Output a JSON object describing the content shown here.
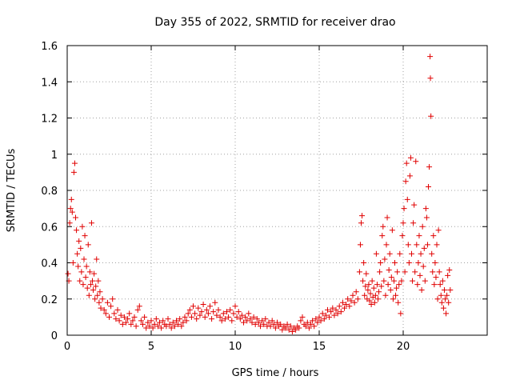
{
  "chart_data": {
    "type": "scatter",
    "title": "Day 355 of 2022, SRMTID for receiver drao",
    "xlabel": "GPS time / hours",
    "ylabel": "SRMTID / TECUs",
    "xlim": [
      0,
      25
    ],
    "ylim": [
      0,
      1.6
    ],
    "xticks": [
      0,
      5,
      10,
      15,
      20
    ],
    "xtick_labels": [
      "0",
      "5",
      "10",
      "15",
      "20"
    ],
    "yticks": [
      0,
      0.2,
      0.4,
      0.6,
      0.8,
      1.0,
      1.2,
      1.4,
      1.6
    ],
    "ytick_labels": [
      "0",
      "0.2",
      "0.4",
      "0.6",
      "0.8",
      "1",
      "1.2",
      "1.4",
      "1.6"
    ],
    "grid": true,
    "marker": "+",
    "color": "#e00000",
    "series": [
      {
        "name": "SRMTID",
        "points": [
          [
            0.05,
            0.34
          ],
          [
            0.1,
            0.3
          ],
          [
            0.15,
            0.62
          ],
          [
            0.2,
            0.7
          ],
          [
            0.25,
            0.75
          ],
          [
            0.3,
            0.68
          ],
          [
            0.35,
            0.4
          ],
          [
            0.4,
            0.9
          ],
          [
            0.45,
            0.95
          ],
          [
            0.5,
            0.65
          ],
          [
            0.55,
            0.58
          ],
          [
            0.6,
            0.45
          ],
          [
            0.65,
            0.38
          ],
          [
            0.7,
            0.52
          ],
          [
            0.75,
            0.3
          ],
          [
            0.8,
            0.48
          ],
          [
            0.85,
            0.35
          ],
          [
            0.9,
            0.6
          ],
          [
            0.95,
            0.28
          ],
          [
            1.0,
            0.42
          ],
          [
            1.05,
            0.55
          ],
          [
            1.1,
            0.32
          ],
          [
            1.15,
            0.38
          ],
          [
            1.2,
            0.26
          ],
          [
            1.25,
            0.5
          ],
          [
            1.3,
            0.22
          ],
          [
            1.35,
            0.35
          ],
          [
            1.4,
            0.28
          ],
          [
            1.45,
            0.62
          ],
          [
            1.5,
            0.3
          ],
          [
            1.55,
            0.25
          ],
          [
            1.6,
            0.34
          ],
          [
            1.65,
            0.2
          ],
          [
            1.7,
            0.27
          ],
          [
            1.75,
            0.42
          ],
          [
            1.8,
            0.22
          ],
          [
            1.85,
            0.3
          ],
          [
            1.9,
            0.18
          ],
          [
            1.95,
            0.24
          ],
          [
            2.0,
            0.15
          ],
          [
            2.1,
            0.2
          ],
          [
            2.2,
            0.14
          ],
          [
            2.3,
            0.12
          ],
          [
            2.4,
            0.18
          ],
          [
            2.5,
            0.1
          ],
          [
            2.6,
            0.16
          ],
          [
            2.7,
            0.2
          ],
          [
            2.8,
            0.12
          ],
          [
            2.9,
            0.09
          ],
          [
            3.0,
            0.14
          ],
          [
            3.1,
            0.08
          ],
          [
            3.2,
            0.11
          ],
          [
            3.3,
            0.06
          ],
          [
            3.4,
            0.1
          ],
          [
            3.5,
            0.07
          ],
          [
            3.6,
            0.09
          ],
          [
            3.7,
            0.12
          ],
          [
            3.8,
            0.06
          ],
          [
            3.9,
            0.08
          ],
          [
            4.0,
            0.1
          ],
          [
            4.1,
            0.05
          ],
          [
            4.2,
            0.14
          ],
          [
            4.3,
            0.16
          ],
          [
            4.4,
            0.08
          ],
          [
            4.5,
            0.06
          ],
          [
            4.6,
            0.1
          ],
          [
            4.7,
            0.04
          ],
          [
            4.8,
            0.07
          ],
          [
            4.9,
            0.05
          ],
          [
            5.0,
            0.08
          ],
          [
            5.1,
            0.04
          ],
          [
            5.2,
            0.06
          ],
          [
            5.3,
            0.09
          ],
          [
            5.4,
            0.05
          ],
          [
            5.5,
            0.07
          ],
          [
            5.6,
            0.04
          ],
          [
            5.7,
            0.08
          ],
          [
            5.8,
            0.06
          ],
          [
            5.9,
            0.05
          ],
          [
            6.0,
            0.09
          ],
          [
            6.1,
            0.06
          ],
          [
            6.2,
            0.04
          ],
          [
            6.3,
            0.07
          ],
          [
            6.4,
            0.05
          ],
          [
            6.5,
            0.08
          ],
          [
            6.6,
            0.06
          ],
          [
            6.7,
            0.09
          ],
          [
            6.8,
            0.05
          ],
          [
            6.9,
            0.07
          ],
          [
            7.0,
            0.1
          ],
          [
            7.1,
            0.08
          ],
          [
            7.2,
            0.12
          ],
          [
            7.3,
            0.14
          ],
          [
            7.4,
            0.1
          ],
          [
            7.5,
            0.16
          ],
          [
            7.6,
            0.12
          ],
          [
            7.7,
            0.09
          ],
          [
            7.8,
            0.15
          ],
          [
            7.9,
            0.11
          ],
          [
            8.0,
            0.13
          ],
          [
            8.1,
            0.17
          ],
          [
            8.2,
            0.1
          ],
          [
            8.3,
            0.14
          ],
          [
            8.4,
            0.12
          ],
          [
            8.5,
            0.16
          ],
          [
            8.6,
            0.09
          ],
          [
            8.7,
            0.13
          ],
          [
            8.8,
            0.18
          ],
          [
            8.9,
            0.11
          ],
          [
            9.0,
            0.14
          ],
          [
            9.1,
            0.1
          ],
          [
            9.2,
            0.08
          ],
          [
            9.3,
            0.12
          ],
          [
            9.4,
            0.09
          ],
          [
            9.5,
            0.13
          ],
          [
            9.6,
            0.1
          ],
          [
            9.7,
            0.14
          ],
          [
            9.8,
            0.08
          ],
          [
            9.9,
            0.12
          ],
          [
            10.0,
            0.16
          ],
          [
            10.1,
            0.1
          ],
          [
            10.2,
            0.13
          ],
          [
            10.3,
            0.09
          ],
          [
            10.4,
            0.11
          ],
          [
            10.5,
            0.07
          ],
          [
            10.6,
            0.1
          ],
          [
            10.7,
            0.08
          ],
          [
            10.8,
            0.12
          ],
          [
            10.9,
            0.09
          ],
          [
            11.0,
            0.07
          ],
          [
            11.1,
            0.1
          ],
          [
            11.2,
            0.06
          ],
          [
            11.3,
            0.09
          ],
          [
            11.4,
            0.07
          ],
          [
            11.5,
            0.05
          ],
          [
            11.6,
            0.08
          ],
          [
            11.7,
            0.06
          ],
          [
            11.8,
            0.09
          ],
          [
            11.9,
            0.05
          ],
          [
            12.0,
            0.07
          ],
          [
            12.1,
            0.05
          ],
          [
            12.2,
            0.08
          ],
          [
            12.3,
            0.06
          ],
          [
            12.4,
            0.04
          ],
          [
            12.5,
            0.07
          ],
          [
            12.6,
            0.05
          ],
          [
            12.7,
            0.06
          ],
          [
            12.8,
            0.03
          ],
          [
            12.9,
            0.05
          ],
          [
            13.0,
            0.04
          ],
          [
            13.1,
            0.06
          ],
          [
            13.2,
            0.03
          ],
          [
            13.3,
            0.05
          ],
          [
            13.4,
            0.02
          ],
          [
            13.5,
            0.04
          ],
          [
            13.6,
            0.03
          ],
          [
            13.7,
            0.05
          ],
          [
            13.8,
            0.04
          ],
          [
            13.9,
            0.08
          ],
          [
            14.0,
            0.1
          ],
          [
            14.1,
            0.06
          ],
          [
            14.2,
            0.05
          ],
          [
            14.3,
            0.07
          ],
          [
            14.4,
            0.04
          ],
          [
            14.5,
            0.06
          ],
          [
            14.6,
            0.08
          ],
          [
            14.7,
            0.05
          ],
          [
            14.8,
            0.09
          ],
          [
            14.9,
            0.07
          ],
          [
            15.0,
            0.1
          ],
          [
            15.1,
            0.08
          ],
          [
            15.2,
            0.12
          ],
          [
            15.3,
            0.09
          ],
          [
            15.4,
            0.11
          ],
          [
            15.5,
            0.14
          ],
          [
            15.6,
            0.1
          ],
          [
            15.7,
            0.13
          ],
          [
            15.8,
            0.15
          ],
          [
            15.9,
            0.11
          ],
          [
            16.0,
            0.14
          ],
          [
            16.1,
            0.12
          ],
          [
            16.2,
            0.16
          ],
          [
            16.3,
            0.13
          ],
          [
            16.4,
            0.18
          ],
          [
            16.5,
            0.15
          ],
          [
            16.6,
            0.17
          ],
          [
            16.7,
            0.2
          ],
          [
            16.8,
            0.16
          ],
          [
            16.9,
            0.19
          ],
          [
            17.0,
            0.22
          ],
          [
            17.1,
            0.18
          ],
          [
            17.2,
            0.24
          ],
          [
            17.3,
            0.2
          ],
          [
            17.4,
            0.35
          ],
          [
            17.45,
            0.5
          ],
          [
            17.5,
            0.62
          ],
          [
            17.55,
            0.66
          ],
          [
            17.6,
            0.3
          ],
          [
            17.65,
            0.4
          ],
          [
            17.7,
            0.22
          ],
          [
            17.75,
            0.27
          ],
          [
            17.8,
            0.34
          ],
          [
            17.85,
            0.2
          ],
          [
            17.9,
            0.25
          ],
          [
            17.95,
            0.28
          ],
          [
            18.0,
            0.19
          ],
          [
            18.05,
            0.23
          ],
          [
            18.1,
            0.17
          ],
          [
            18.15,
            0.3
          ],
          [
            18.2,
            0.21
          ],
          [
            18.25,
            0.26
          ],
          [
            18.3,
            0.18
          ],
          [
            18.35,
            0.22
          ],
          [
            18.4,
            0.45
          ],
          [
            18.45,
            0.28
          ],
          [
            18.5,
            0.2
          ],
          [
            18.55,
            0.24
          ],
          [
            18.6,
            0.35
          ],
          [
            18.65,
            0.4
          ],
          [
            18.7,
            0.27
          ],
          [
            18.75,
            0.55
          ],
          [
            18.8,
            0.6
          ],
          [
            18.85,
            0.3
          ],
          [
            18.9,
            0.42
          ],
          [
            18.95,
            0.22
          ],
          [
            19.0,
            0.5
          ],
          [
            19.05,
            0.65
          ],
          [
            19.1,
            0.28
          ],
          [
            19.15,
            0.36
          ],
          [
            19.2,
            0.45
          ],
          [
            19.25,
            0.25
          ],
          [
            19.3,
            0.32
          ],
          [
            19.35,
            0.58
          ],
          [
            19.4,
            0.2
          ],
          [
            19.45,
            0.3
          ],
          [
            19.5,
            0.4
          ],
          [
            19.55,
            0.22
          ],
          [
            19.6,
            0.26
          ],
          [
            19.65,
            0.35
          ],
          [
            19.7,
            0.18
          ],
          [
            19.75,
            0.28
          ],
          [
            19.8,
            0.45
          ],
          [
            19.85,
            0.12
          ],
          [
            19.9,
            0.3
          ],
          [
            19.95,
            0.55
          ],
          [
            20.0,
            0.62
          ],
          [
            20.05,
            0.7
          ],
          [
            20.1,
            0.35
          ],
          [
            20.15,
            0.85
          ],
          [
            20.2,
            0.95
          ],
          [
            20.25,
            0.75
          ],
          [
            20.3,
            0.5
          ],
          [
            20.35,
            0.4
          ],
          [
            20.4,
            0.88
          ],
          [
            20.45,
            0.98
          ],
          [
            20.5,
            0.45
          ],
          [
            20.55,
            0.3
          ],
          [
            20.6,
            0.62
          ],
          [
            20.65,
            0.72
          ],
          [
            20.7,
            0.35
          ],
          [
            20.75,
            0.96
          ],
          [
            20.8,
            0.5
          ],
          [
            20.85,
            0.28
          ],
          [
            20.9,
            0.4
          ],
          [
            20.95,
            0.55
          ],
          [
            21.0,
            0.33
          ],
          [
            21.05,
            0.45
          ],
          [
            21.1,
            0.25
          ],
          [
            21.15,
            0.6
          ],
          [
            21.2,
            0.38
          ],
          [
            21.25,
            0.48
          ],
          [
            21.3,
            0.3
          ],
          [
            21.35,
            0.7
          ],
          [
            21.4,
            0.65
          ],
          [
            21.45,
            0.5
          ],
          [
            21.5,
            0.82
          ],
          [
            21.55,
            0.93
          ],
          [
            21.6,
            1.54
          ],
          [
            21.62,
            1.42
          ],
          [
            21.65,
            1.21
          ],
          [
            21.7,
            0.45
          ],
          [
            21.75,
            0.35
          ],
          [
            21.8,
            0.55
          ],
          [
            21.85,
            0.28
          ],
          [
            21.9,
            0.4
          ],
          [
            21.95,
            0.32
          ],
          [
            22.0,
            0.5
          ],
          [
            22.05,
            0.2
          ],
          [
            22.1,
            0.58
          ],
          [
            22.15,
            0.35
          ],
          [
            22.2,
            0.28
          ],
          [
            22.25,
            0.22
          ],
          [
            22.3,
            0.18
          ],
          [
            22.35,
            0.3
          ],
          [
            22.4,
            0.15
          ],
          [
            22.45,
            0.25
          ],
          [
            22.5,
            0.2
          ],
          [
            22.55,
            0.12
          ],
          [
            22.6,
            0.22
          ],
          [
            22.65,
            0.33
          ],
          [
            22.7,
            0.18
          ],
          [
            22.75,
            0.36
          ],
          [
            22.8,
            0.25
          ]
        ]
      }
    ]
  }
}
